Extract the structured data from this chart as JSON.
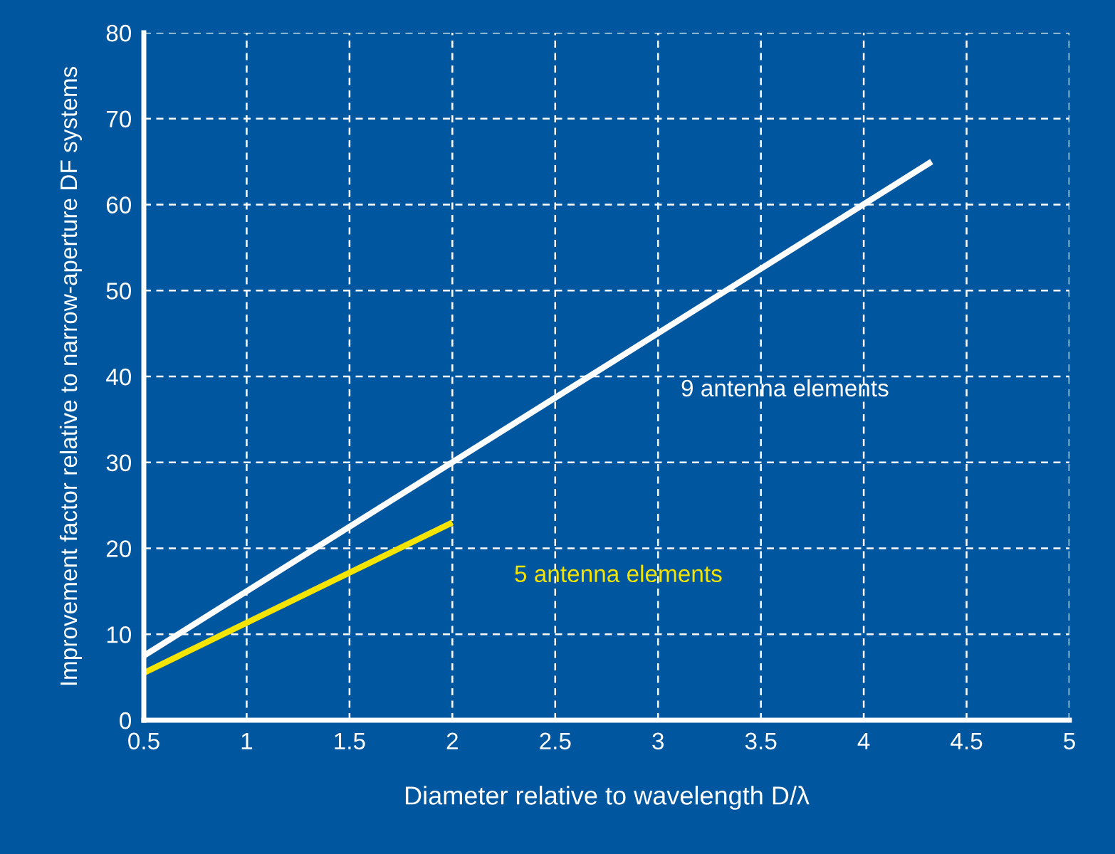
{
  "chart_data": {
    "type": "line",
    "xlabel": "Diameter relative to wavelength D/λ",
    "ylabel": "Improvement factor relative to narrow-aperture DF systems",
    "xlim": [
      0.5,
      5
    ],
    "xticks": [
      0.5,
      1,
      1.5,
      2,
      2.5,
      3,
      3.5,
      4,
      4.5,
      5
    ],
    "ylim": [
      0,
      80
    ],
    "yticks": [
      0,
      10,
      20,
      30,
      40,
      50,
      60,
      70,
      80
    ],
    "grid": true,
    "line_style": "solid",
    "series": [
      {
        "name": "9 antenna elements",
        "color": "#ffffff",
        "x": [
          0.5,
          4.33
        ],
        "values": [
          7.5,
          65
        ]
      },
      {
        "name": "5 antenna elements",
        "color": "#f5e400",
        "x": [
          0.5,
          2
        ],
        "values": [
          5.5,
          23
        ]
      }
    ]
  }
}
